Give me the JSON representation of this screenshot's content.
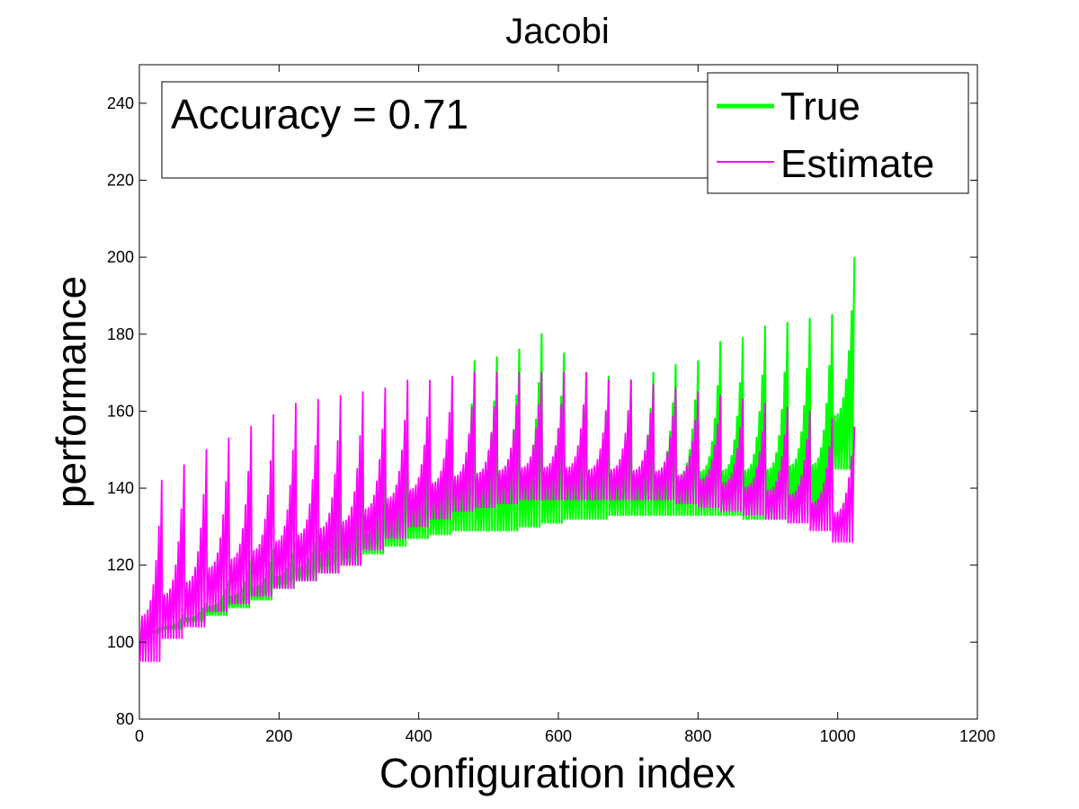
{
  "chart_data": {
    "type": "line",
    "title": "Jacobi",
    "xlabel": "Configuration index",
    "ylabel": "performance",
    "xlim": [
      0,
      1200
    ],
    "ylim": [
      80,
      250
    ],
    "xticks": [
      0,
      200,
      400,
      600,
      800,
      1000,
      1200
    ],
    "yticks": [
      80,
      100,
      120,
      140,
      160,
      180,
      200,
      220,
      240
    ],
    "grid": false,
    "legend_position": "top-right",
    "annotation": "Accuracy = 0.71",
    "n_points": 1024,
    "period": 32,
    "series": [
      {
        "name": "True",
        "color": "#00ff00",
        "segment_min": [
          102,
          103,
          105,
          107,
          109,
          111,
          114,
          116,
          118,
          120,
          123,
          125,
          127,
          128,
          129,
          129,
          129,
          130,
          131,
          132,
          132,
          133,
          133,
          133,
          133,
          133,
          133,
          132,
          132,
          133,
          133,
          145
        ],
        "segment_max": [
          104,
          107,
          110,
          116,
          121,
          124,
          126,
          129,
          136,
          140,
          143,
          153,
          155,
          160,
          173,
          174,
          176,
          180,
          175,
          170,
          169,
          168,
          170,
          172,
          173,
          178,
          179,
          182,
          183,
          184,
          185,
          200
        ]
      },
      {
        "name": "Estimate",
        "color": "#ff00ff",
        "segment_min": [
          95,
          101,
          104,
          108,
          110,
          112,
          114,
          116,
          118,
          120,
          124,
          127,
          130,
          132,
          134,
          135,
          136,
          137,
          137,
          137,
          137,
          137,
          137,
          137,
          136,
          135,
          134,
          133,
          132,
          131,
          129,
          126
        ],
        "segment_max": [
          142,
          146,
          150,
          153,
          156,
          159,
          162,
          163,
          164,
          165,
          166,
          168,
          168,
          169,
          170,
          170,
          170,
          170,
          170,
          170,
          168,
          168,
          167,
          166,
          165,
          164,
          163,
          162,
          161,
          160,
          158,
          156
        ]
      }
    ]
  }
}
